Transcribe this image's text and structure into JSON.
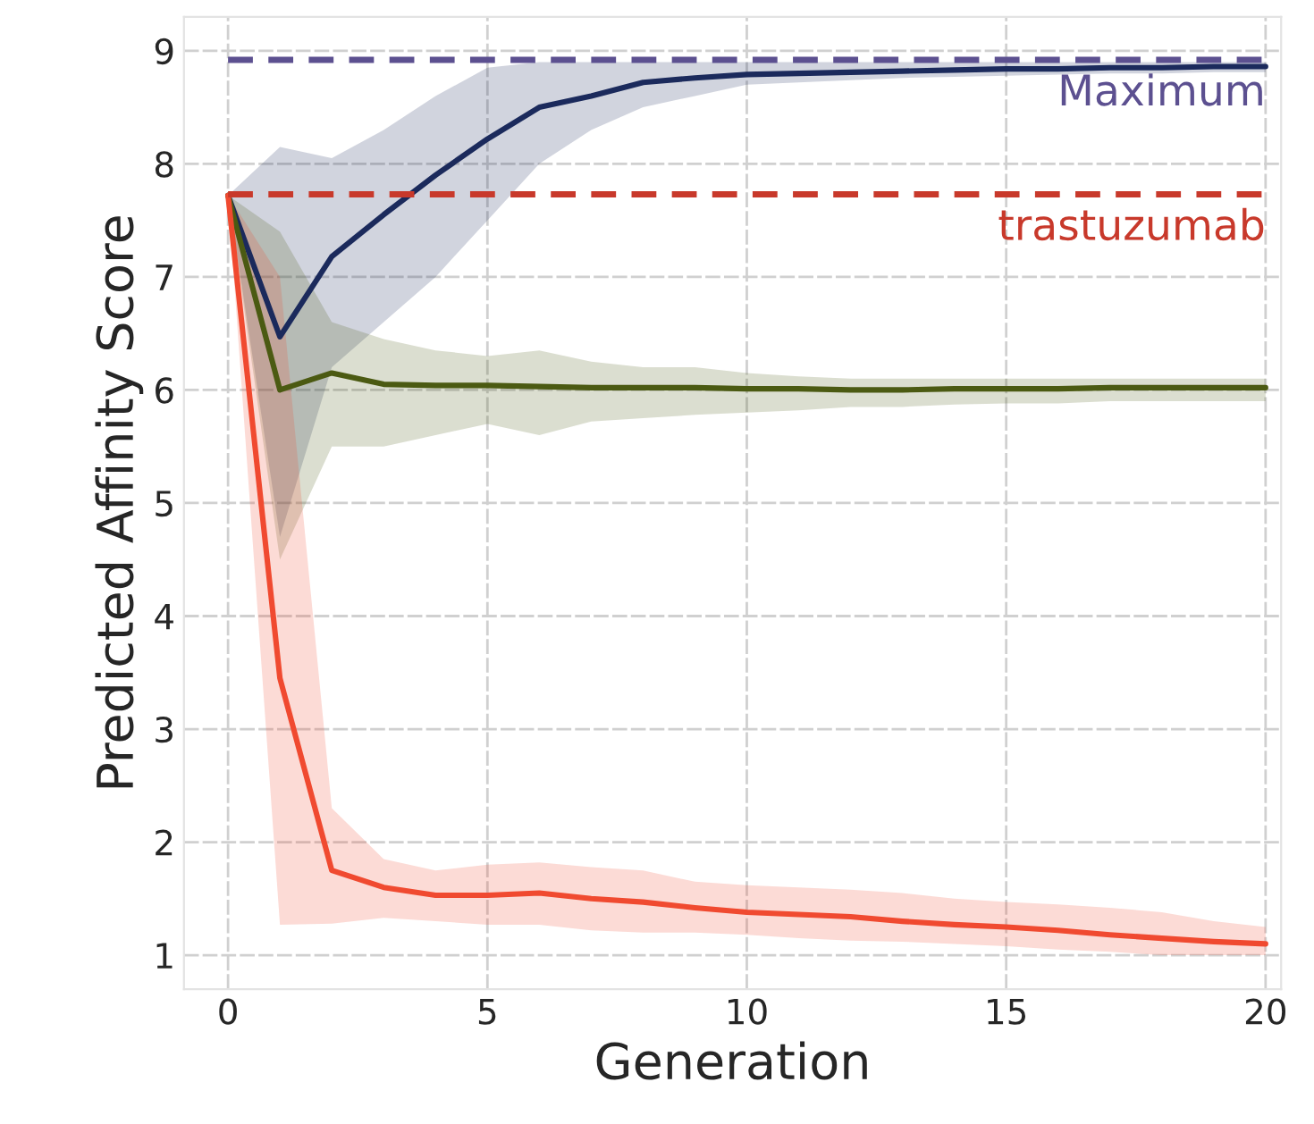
{
  "chart_data": {
    "type": "line",
    "xlabel": "Generation",
    "ylabel": "Predicted Affinity Score",
    "x": [
      0,
      1,
      2,
      3,
      4,
      5,
      6,
      7,
      8,
      9,
      10,
      11,
      12,
      13,
      14,
      15,
      16,
      17,
      18,
      19,
      20
    ],
    "series": [
      {
        "color": "#1b2a5c",
        "values": [
          7.72,
          6.47,
          7.18,
          7.55,
          7.9,
          8.22,
          8.5,
          8.6,
          8.72,
          8.76,
          8.79,
          8.8,
          8.81,
          8.82,
          8.83,
          8.84,
          8.84,
          8.85,
          8.85,
          8.86,
          8.86
        ],
        "lower": [
          7.72,
          4.7,
          6.2,
          6.6,
          7.0,
          7.5,
          8.0,
          8.3,
          8.5,
          8.6,
          8.7,
          8.72,
          8.74,
          8.76,
          8.77,
          8.78,
          8.79,
          8.8,
          8.8,
          8.81,
          8.81
        ],
        "upper": [
          7.72,
          8.15,
          8.05,
          8.3,
          8.6,
          8.85,
          8.9,
          8.9,
          8.9,
          8.9,
          8.9,
          8.9,
          8.9,
          8.9,
          8.9,
          8.9,
          8.9,
          8.9,
          8.9,
          8.9,
          8.9
        ]
      },
      {
        "color": "#4b5a12",
        "values": [
          7.72,
          6.0,
          6.15,
          6.05,
          6.04,
          6.04,
          6.03,
          6.02,
          6.02,
          6.02,
          6.01,
          6.01,
          6.0,
          6.0,
          6.01,
          6.01,
          6.01,
          6.02,
          6.02,
          6.02,
          6.02
        ],
        "lower": [
          7.72,
          4.5,
          5.5,
          5.5,
          5.6,
          5.7,
          5.6,
          5.72,
          5.75,
          5.78,
          5.8,
          5.82,
          5.85,
          5.85,
          5.87,
          5.88,
          5.88,
          5.9,
          5.9,
          5.9,
          5.9
        ],
        "upper": [
          7.72,
          7.4,
          6.6,
          6.45,
          6.35,
          6.3,
          6.35,
          6.25,
          6.2,
          6.2,
          6.15,
          6.12,
          6.1,
          6.1,
          6.1,
          6.1,
          6.1,
          6.1,
          6.1,
          6.1,
          6.1
        ]
      },
      {
        "color": "#f04a30",
        "values": [
          7.72,
          3.45,
          1.75,
          1.6,
          1.53,
          1.53,
          1.55,
          1.5,
          1.47,
          1.42,
          1.38,
          1.36,
          1.34,
          1.3,
          1.27,
          1.25,
          1.22,
          1.18,
          1.15,
          1.12,
          1.1
        ],
        "lower": [
          7.72,
          1.27,
          1.28,
          1.33,
          1.3,
          1.27,
          1.27,
          1.22,
          1.2,
          1.2,
          1.18,
          1.15,
          1.13,
          1.12,
          1.1,
          1.08,
          1.05,
          1.03,
          1.0,
          1.0,
          1.0
        ],
        "upper": [
          7.72,
          7.0,
          2.3,
          1.85,
          1.75,
          1.8,
          1.82,
          1.78,
          1.75,
          1.65,
          1.62,
          1.6,
          1.58,
          1.55,
          1.5,
          1.47,
          1.45,
          1.42,
          1.38,
          1.3,
          1.25
        ]
      }
    ],
    "ref_lines": [
      {
        "axis": "y",
        "value": 8.92,
        "label": "Maximum",
        "color": "#5c5090",
        "line_style": "dashed"
      },
      {
        "axis": "y",
        "value": 7.73,
        "label": "trastuzumab",
        "color": "#c8392b",
        "line_style": "dashed"
      }
    ],
    "xlim": [
      -0.85,
      20.3
    ],
    "ylim": [
      0.7,
      9.3
    ],
    "xticks": [
      0,
      5,
      10,
      15,
      20
    ],
    "yticks": [
      1,
      2,
      3,
      4,
      5,
      6,
      7,
      8,
      9
    ],
    "grid": true,
    "marker": "none",
    "line_style": "solid"
  }
}
